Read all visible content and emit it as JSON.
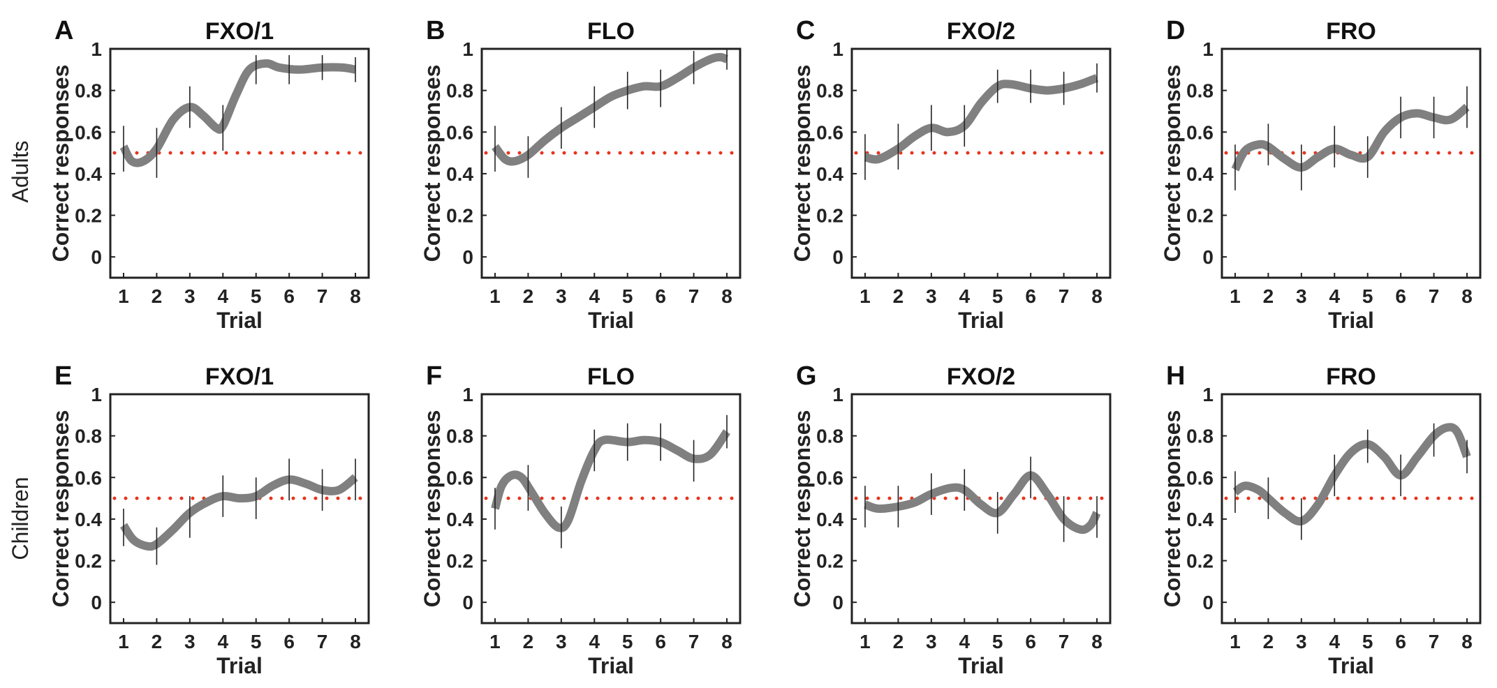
{
  "figure": {
    "row_labels": [
      "Adults",
      "Children"
    ],
    "colors": {
      "curve": "#808080",
      "chance": "#e8331c",
      "errorbar": "#222222",
      "axis": "#222222"
    }
  },
  "chart_data": [
    {
      "type": "line",
      "panel": "A",
      "group": "Adults",
      "title": "FXO/1",
      "xlabel": "Trial",
      "ylabel": "Correct responses",
      "x": [
        1,
        2,
        3,
        4,
        5,
        6,
        7,
        8
      ],
      "xticks": [
        "1",
        "2",
        "3",
        "4",
        "5",
        "6",
        "7",
        "8"
      ],
      "yticks": [
        "0",
        "0.2",
        "0.4",
        "0.6",
        "0.8",
        "1"
      ],
      "ylim": [
        -0.1,
        1
      ],
      "xlim": [
        0.6,
        8.4
      ],
      "values": [
        0.52,
        0.5,
        0.72,
        0.62,
        0.9,
        0.9,
        0.91,
        0.9
      ],
      "smooth_curve": [
        [
          1,
          0.53
        ],
        [
          1.25,
          0.46
        ],
        [
          1.6,
          0.46
        ],
        [
          2,
          0.52
        ],
        [
          2.5,
          0.66
        ],
        [
          3,
          0.72
        ],
        [
          3.4,
          0.68
        ],
        [
          3.8,
          0.62
        ],
        [
          4,
          0.63
        ],
        [
          4.4,
          0.78
        ],
        [
          4.8,
          0.9
        ],
        [
          5.3,
          0.93
        ],
        [
          5.7,
          0.91
        ],
        [
          6.3,
          0.9
        ],
        [
          7,
          0.91
        ],
        [
          7.6,
          0.91
        ],
        [
          8,
          0.9
        ]
      ],
      "error": [
        0.11,
        0.12,
        0.1,
        0.11,
        0.07,
        0.07,
        0.06,
        0.06
      ],
      "chance_level": 0.5
    },
    {
      "type": "line",
      "panel": "B",
      "group": "Adults",
      "title": "FLO",
      "xlabel": "Trial",
      "ylabel": "Correct responses",
      "x": [
        1,
        2,
        3,
        4,
        5,
        6,
        7,
        8
      ],
      "xticks": [
        "1",
        "2",
        "3",
        "4",
        "5",
        "6",
        "7",
        "8"
      ],
      "yticks": [
        "0",
        "0.2",
        "0.4",
        "0.6",
        "0.8",
        "1"
      ],
      "ylim": [
        -0.1,
        1
      ],
      "xlim": [
        0.6,
        8.4
      ],
      "values": [
        0.52,
        0.48,
        0.62,
        0.72,
        0.8,
        0.81,
        0.91,
        0.95
      ],
      "smooth_curve": [
        [
          1,
          0.53
        ],
        [
          1.3,
          0.47
        ],
        [
          1.6,
          0.46
        ],
        [
          2,
          0.49
        ],
        [
          2.5,
          0.56
        ],
        [
          3,
          0.62
        ],
        [
          3.5,
          0.67
        ],
        [
          4,
          0.72
        ],
        [
          4.5,
          0.77
        ],
        [
          5,
          0.8
        ],
        [
          5.5,
          0.82
        ],
        [
          6,
          0.82
        ],
        [
          6.5,
          0.86
        ],
        [
          7,
          0.91
        ],
        [
          7.5,
          0.95
        ],
        [
          7.8,
          0.96
        ],
        [
          8,
          0.95
        ]
      ],
      "error": [
        0.11,
        0.1,
        0.1,
        0.1,
        0.09,
        0.09,
        0.08,
        0.05
      ],
      "chance_level": 0.5
    },
    {
      "type": "line",
      "panel": "C",
      "group": "Adults",
      "title": "FXO/2",
      "xlabel": "Trial",
      "ylabel": "Correct responses",
      "x": [
        1,
        2,
        3,
        4,
        5,
        6,
        7,
        8
      ],
      "xticks": [
        "1",
        "2",
        "3",
        "4",
        "5",
        "6",
        "7",
        "8"
      ],
      "yticks": [
        "0",
        "0.2",
        "0.4",
        "0.6",
        "0.8",
        "1"
      ],
      "ylim": [
        -0.1,
        1
      ],
      "xlim": [
        0.6,
        8.4
      ],
      "values": [
        0.48,
        0.53,
        0.62,
        0.63,
        0.82,
        0.82,
        0.81,
        0.86
      ],
      "smooth_curve": [
        [
          1,
          0.48
        ],
        [
          1.4,
          0.47
        ],
        [
          2,
          0.52
        ],
        [
          2.5,
          0.58
        ],
        [
          3,
          0.62
        ],
        [
          3.5,
          0.6
        ],
        [
          4,
          0.63
        ],
        [
          4.5,
          0.74
        ],
        [
          5,
          0.82
        ],
        [
          5.4,
          0.83
        ],
        [
          6,
          0.81
        ],
        [
          6.5,
          0.8
        ],
        [
          7,
          0.81
        ],
        [
          7.5,
          0.83
        ],
        [
          8,
          0.86
        ]
      ],
      "error": [
        0.11,
        0.11,
        0.11,
        0.1,
        0.08,
        0.08,
        0.08,
        0.07
      ],
      "chance_level": 0.5
    },
    {
      "type": "line",
      "panel": "D",
      "group": "Adults",
      "title": "FRO",
      "xlabel": "Trial",
      "ylabel": "Correct responses",
      "x": [
        1,
        2,
        3,
        4,
        5,
        6,
        7,
        8
      ],
      "xticks": [
        "1",
        "2",
        "3",
        "4",
        "5",
        "6",
        "7",
        "8"
      ],
      "yticks": [
        "0",
        "0.2",
        "0.4",
        "0.6",
        "0.8",
        "1"
      ],
      "ylim": [
        -0.1,
        1
      ],
      "xlim": [
        0.6,
        8.4
      ],
      "values": [
        0.43,
        0.54,
        0.43,
        0.53,
        0.48,
        0.67,
        0.67,
        0.72
      ],
      "smooth_curve": [
        [
          1,
          0.42
        ],
        [
          1.3,
          0.51
        ],
        [
          1.7,
          0.54
        ],
        [
          2,
          0.53
        ],
        [
          2.5,
          0.47
        ],
        [
          3,
          0.43
        ],
        [
          3.5,
          0.48
        ],
        [
          4,
          0.52
        ],
        [
          4.5,
          0.49
        ],
        [
          5,
          0.48
        ],
        [
          5.5,
          0.6
        ],
        [
          6,
          0.67
        ],
        [
          6.5,
          0.69
        ],
        [
          7,
          0.67
        ],
        [
          7.5,
          0.66
        ],
        [
          8,
          0.72
        ]
      ],
      "error": [
        0.11,
        0.1,
        0.11,
        0.1,
        0.1,
        0.1,
        0.1,
        0.1
      ],
      "chance_level": 0.5
    },
    {
      "type": "line",
      "panel": "E",
      "group": "Children",
      "title": "FXO/1",
      "xlabel": "Trial",
      "ylabel": "Correct responses",
      "x": [
        1,
        2,
        3,
        4,
        5,
        6,
        7,
        8
      ],
      "xticks": [
        "1",
        "2",
        "3",
        "4",
        "5",
        "6",
        "7",
        "8"
      ],
      "yticks": [
        "0",
        "0.2",
        "0.4",
        "0.6",
        "0.8",
        "1"
      ],
      "ylim": [
        -0.1,
        1
      ],
      "xlim": [
        0.6,
        8.4
      ],
      "values": [
        0.36,
        0.27,
        0.41,
        0.51,
        0.5,
        0.59,
        0.54,
        0.59
      ],
      "smooth_curve": [
        [
          1,
          0.37
        ],
        [
          1.3,
          0.3
        ],
        [
          1.7,
          0.27
        ],
        [
          2,
          0.28
        ],
        [
          2.5,
          0.35
        ],
        [
          3,
          0.43
        ],
        [
          3.5,
          0.48
        ],
        [
          4,
          0.51
        ],
        [
          4.5,
          0.5
        ],
        [
          5,
          0.51
        ],
        [
          5.5,
          0.56
        ],
        [
          6,
          0.59
        ],
        [
          6.5,
          0.57
        ],
        [
          7,
          0.54
        ],
        [
          7.5,
          0.54
        ],
        [
          8,
          0.6
        ]
      ],
      "error": [
        0.09,
        0.09,
        0.1,
        0.1,
        0.1,
        0.1,
        0.1,
        0.1
      ],
      "chance_level": 0.5
    },
    {
      "type": "line",
      "panel": "F",
      "group": "Children",
      "title": "FLO",
      "xlabel": "Trial",
      "ylabel": "Correct responses",
      "x": [
        1,
        2,
        3,
        4,
        5,
        6,
        7,
        8
      ],
      "xticks": [
        "1",
        "2",
        "3",
        "4",
        "5",
        "6",
        "7",
        "8"
      ],
      "yticks": [
        "0",
        "0.2",
        "0.4",
        "0.6",
        "0.8",
        "1"
      ],
      "ylim": [
        -0.1,
        1
      ],
      "xlim": [
        0.6,
        8.4
      ],
      "values": [
        0.45,
        0.55,
        0.36,
        0.73,
        0.77,
        0.77,
        0.68,
        0.82
      ],
      "smooth_curve": [
        [
          1,
          0.45
        ],
        [
          1.2,
          0.56
        ],
        [
          1.5,
          0.61
        ],
        [
          1.8,
          0.6
        ],
        [
          2.1,
          0.53
        ],
        [
          2.5,
          0.43
        ],
        [
          2.9,
          0.36
        ],
        [
          3.2,
          0.39
        ],
        [
          3.6,
          0.58
        ],
        [
          4,
          0.73
        ],
        [
          4.3,
          0.78
        ],
        [
          5,
          0.77
        ],
        [
          5.5,
          0.78
        ],
        [
          6,
          0.77
        ],
        [
          6.5,
          0.73
        ],
        [
          7,
          0.69
        ],
        [
          7.5,
          0.71
        ],
        [
          8,
          0.82
        ]
      ],
      "error": [
        0.1,
        0.11,
        0.1,
        0.1,
        0.09,
        0.09,
        0.1,
        0.08
      ],
      "chance_level": 0.5
    },
    {
      "type": "line",
      "panel": "G",
      "group": "Children",
      "title": "FXO/2",
      "xlabel": "Trial",
      "ylabel": "Correct responses",
      "x": [
        1,
        2,
        3,
        4,
        5,
        6,
        7,
        8
      ],
      "xticks": [
        "1",
        "2",
        "3",
        "4",
        "5",
        "6",
        "7",
        "8"
      ],
      "yticks": [
        "0",
        "0.2",
        "0.4",
        "0.6",
        "0.8",
        "1"
      ],
      "ylim": [
        -0.1,
        1
      ],
      "xlim": [
        0.6,
        8.4
      ],
      "values": [
        0.46,
        0.46,
        0.52,
        0.54,
        0.43,
        0.6,
        0.4,
        0.41
      ],
      "smooth_curve": [
        [
          1,
          0.47
        ],
        [
          1.4,
          0.45
        ],
        [
          2,
          0.46
        ],
        [
          2.5,
          0.48
        ],
        [
          3,
          0.52
        ],
        [
          3.6,
          0.55
        ],
        [
          4,
          0.54
        ],
        [
          4.5,
          0.47
        ],
        [
          5,
          0.43
        ],
        [
          5.5,
          0.52
        ],
        [
          6,
          0.61
        ],
        [
          6.5,
          0.52
        ],
        [
          7,
          0.4
        ],
        [
          7.5,
          0.35
        ],
        [
          7.8,
          0.37
        ],
        [
          8,
          0.43
        ]
      ],
      "error": [
        0.1,
        0.1,
        0.1,
        0.1,
        0.1,
        0.1,
        0.11,
        0.1
      ],
      "chance_level": 0.5
    },
    {
      "type": "line",
      "panel": "H",
      "group": "Children",
      "title": "FRO",
      "xlabel": "Trial",
      "ylabel": "Correct responses",
      "x": [
        1,
        2,
        3,
        4,
        5,
        6,
        7,
        8
      ],
      "xticks": [
        "1",
        "2",
        "3",
        "4",
        "5",
        "6",
        "7",
        "8"
      ],
      "yticks": [
        "0",
        "0.2",
        "0.4",
        "0.6",
        "0.8",
        "1"
      ],
      "ylim": [
        -0.1,
        1
      ],
      "xlim": [
        0.6,
        8.4
      ],
      "values": [
        0.53,
        0.5,
        0.4,
        0.61,
        0.75,
        0.61,
        0.78,
        0.7
      ],
      "smooth_curve": [
        [
          1,
          0.53
        ],
        [
          1.3,
          0.56
        ],
        [
          1.7,
          0.54
        ],
        [
          2,
          0.5
        ],
        [
          2.5,
          0.43
        ],
        [
          3,
          0.39
        ],
        [
          3.5,
          0.47
        ],
        [
          4,
          0.61
        ],
        [
          4.5,
          0.72
        ],
        [
          5,
          0.76
        ],
        [
          5.5,
          0.7
        ],
        [
          6,
          0.61
        ],
        [
          6.5,
          0.7
        ],
        [
          7,
          0.8
        ],
        [
          7.4,
          0.84
        ],
        [
          7.7,
          0.82
        ],
        [
          8,
          0.7
        ]
      ],
      "error": [
        0.1,
        0.1,
        0.1,
        0.1,
        0.08,
        0.1,
        0.08,
        0.08
      ],
      "chance_level": 0.5
    }
  ]
}
